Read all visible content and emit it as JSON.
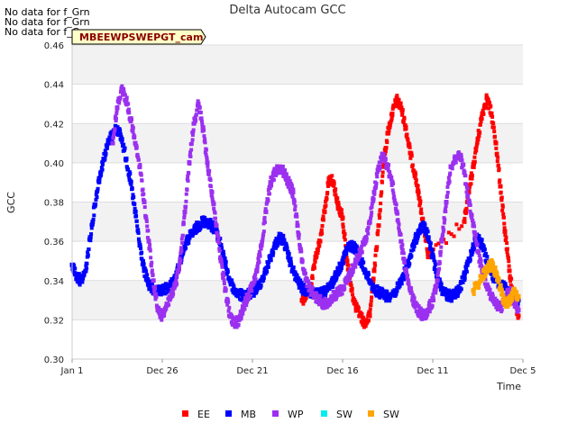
{
  "no_data_messages": [
    "No data for f_Grn",
    "No data for f_Grn",
    "No data for f_Grn"
  ],
  "site_label": "MBEEWPSWEPGT_cam",
  "chart_data": {
    "type": "scatter",
    "title": "Delta Autocam GCC",
    "xlabel": "Time",
    "ylabel": "GCC",
    "x_tick_labels": [
      "Jan 1",
      "Dec 26",
      "Dec 21",
      "Dec 16",
      "Dec 11",
      "Dec 5"
    ],
    "xlim": [
      0,
      5
    ],
    "ylim": [
      0.3,
      0.46
    ],
    "y_ticks": [
      0.3,
      0.32,
      0.34,
      0.36,
      0.38,
      0.4,
      0.42,
      0.44,
      0.46
    ],
    "y_tick_labels": [
      "0.30",
      "0.32",
      "0.34",
      "0.36",
      "0.38",
      "0.40",
      "0.42",
      "0.44",
      "0.46"
    ],
    "grid": true,
    "legend_position": "bottom",
    "series": [
      {
        "name": "EE",
        "color": "#ff0000",
        "x": [
          2.55,
          2.6,
          2.65,
          2.7,
          2.75,
          2.8,
          2.85,
          2.9,
          2.95,
          3.0,
          3.05,
          3.1,
          3.15,
          3.2,
          3.25,
          3.3,
          3.35,
          3.4,
          3.45,
          3.5,
          3.55,
          3.6,
          3.65,
          3.7,
          3.75,
          3.8,
          3.85,
          3.9,
          3.95,
          4.35,
          4.4,
          4.45,
          4.5,
          4.55,
          4.6,
          4.65,
          4.7,
          4.75,
          4.8,
          4.85,
          4.9,
          4.95
        ],
        "y": [
          0.33,
          0.333,
          0.338,
          0.352,
          0.36,
          0.375,
          0.392,
          0.39,
          0.378,
          0.372,
          0.35,
          0.335,
          0.326,
          0.322,
          0.318,
          0.322,
          0.345,
          0.368,
          0.398,
          0.415,
          0.425,
          0.432,
          0.428,
          0.418,
          0.405,
          0.395,
          0.382,
          0.368,
          0.352,
          0.37,
          0.385,
          0.398,
          0.412,
          0.425,
          0.433,
          0.425,
          0.41,
          0.388,
          0.365,
          0.345,
          0.33,
          0.322
        ]
      },
      {
        "name": "MB",
        "color": "#0000ff",
        "x": [
          0.0,
          0.05,
          0.1,
          0.15,
          0.2,
          0.25,
          0.3,
          0.35,
          0.4,
          0.45,
          0.5,
          0.55,
          0.6,
          0.65,
          0.7,
          0.75,
          0.8,
          0.85,
          0.9,
          0.95,
          1.0,
          1.05,
          1.1,
          1.15,
          1.2,
          1.25,
          1.3,
          1.35,
          1.4,
          1.45,
          1.5,
          1.55,
          1.6,
          1.65,
          1.7,
          1.75,
          1.8,
          1.85,
          1.9,
          1.95,
          2.0,
          2.05,
          2.1,
          2.15,
          2.2,
          2.25,
          2.3,
          2.35,
          2.4,
          2.45,
          2.5,
          2.55,
          2.6,
          2.65,
          2.7,
          2.75,
          2.8,
          2.85,
          2.9,
          2.95,
          3.0,
          3.05,
          3.1,
          3.15,
          3.2,
          3.25,
          3.3,
          3.35,
          3.4,
          3.45,
          3.5,
          3.55,
          3.6,
          3.65,
          3.7,
          3.75,
          3.8,
          3.85,
          3.9,
          3.95,
          4.0,
          4.05,
          4.1,
          4.15,
          4.2,
          4.25,
          4.3,
          4.35,
          4.4,
          4.45,
          4.5,
          4.55,
          4.6,
          4.65,
          4.7,
          4.75,
          4.8,
          4.85,
          4.9,
          4.95
        ],
        "y": [
          0.348,
          0.342,
          0.34,
          0.345,
          0.362,
          0.378,
          0.392,
          0.402,
          0.41,
          0.415,
          0.418,
          0.412,
          0.402,
          0.39,
          0.375,
          0.358,
          0.345,
          0.338,
          0.335,
          0.334,
          0.335,
          0.336,
          0.338,
          0.342,
          0.35,
          0.358,
          0.362,
          0.365,
          0.368,
          0.37,
          0.37,
          0.368,
          0.365,
          0.358,
          0.348,
          0.34,
          0.335,
          0.333,
          0.332,
          0.333,
          0.334,
          0.336,
          0.34,
          0.345,
          0.352,
          0.358,
          0.362,
          0.36,
          0.352,
          0.345,
          0.34,
          0.336,
          0.335,
          0.334,
          0.333,
          0.333,
          0.334,
          0.336,
          0.34,
          0.345,
          0.35,
          0.356,
          0.358,
          0.356,
          0.35,
          0.345,
          0.34,
          0.336,
          0.334,
          0.333,
          0.332,
          0.333,
          0.335,
          0.34,
          0.345,
          0.352,
          0.36,
          0.365,
          0.368,
          0.362,
          0.352,
          0.342,
          0.336,
          0.333,
          0.332,
          0.333,
          0.336,
          0.342,
          0.35,
          0.358,
          0.362,
          0.358,
          0.35,
          0.344,
          0.34,
          0.338,
          0.336,
          0.334,
          0.332,
          0.33
        ]
      },
      {
        "name": "WP",
        "color": "#9b30f0",
        "x": [
          0.45,
          0.5,
          0.55,
          0.6,
          0.65,
          0.7,
          0.75,
          0.8,
          0.85,
          0.9,
          0.95,
          1.0,
          1.05,
          1.1,
          1.15,
          1.2,
          1.25,
          1.3,
          1.35,
          1.4,
          1.45,
          1.5,
          1.55,
          1.6,
          1.65,
          1.7,
          1.75,
          1.8,
          1.85,
          1.9,
          1.95,
          2.0,
          2.05,
          2.1,
          2.15,
          2.2,
          2.25,
          2.3,
          2.35,
          2.4,
          2.45,
          2.5,
          2.55,
          2.6,
          2.65,
          2.7,
          2.75,
          2.8,
          2.85,
          2.9,
          2.95,
          3.0,
          3.05,
          3.1,
          3.15,
          3.2,
          3.25,
          3.3,
          3.35,
          3.4,
          3.45,
          3.5,
          3.55,
          3.6,
          3.65,
          3.7,
          3.75,
          3.8,
          3.85,
          3.9,
          3.95,
          4.0,
          4.05,
          4.1,
          4.15,
          4.2,
          4.25,
          4.3,
          4.35,
          4.4,
          4.45,
          4.5,
          4.55,
          4.6,
          4.65,
          4.7,
          4.75,
          4.8,
          4.85,
          4.9,
          4.95
        ],
        "y": [
          0.41,
          0.428,
          0.438,
          0.432,
          0.422,
          0.41,
          0.398,
          0.38,
          0.36,
          0.34,
          0.325,
          0.322,
          0.328,
          0.332,
          0.338,
          0.35,
          0.375,
          0.4,
          0.42,
          0.43,
          0.418,
          0.4,
          0.385,
          0.368,
          0.35,
          0.335,
          0.322,
          0.318,
          0.32,
          0.326,
          0.332,
          0.338,
          0.345,
          0.358,
          0.375,
          0.39,
          0.395,
          0.398,
          0.395,
          0.39,
          0.385,
          0.368,
          0.35,
          0.34,
          0.335,
          0.332,
          0.33,
          0.328,
          0.33,
          0.332,
          0.334,
          0.336,
          0.34,
          0.345,
          0.35,
          0.355,
          0.36,
          0.37,
          0.385,
          0.398,
          0.404,
          0.398,
          0.39,
          0.375,
          0.36,
          0.345,
          0.335,
          0.328,
          0.324,
          0.322,
          0.325,
          0.33,
          0.34,
          0.36,
          0.38,
          0.398,
          0.402,
          0.404,
          0.395,
          0.38,
          0.368,
          0.355,
          0.345,
          0.338,
          0.332,
          0.328,
          0.326,
          0.33,
          0.335,
          0.33,
          0.325
        ]
      },
      {
        "name": "SW",
        "color": "#00eeee",
        "x": [],
        "y": []
      },
      {
        "name": "SW",
        "color": "#ffa500",
        "x": [
          4.45,
          4.5,
          4.55,
          4.6,
          4.65,
          4.7,
          4.75,
          4.8,
          4.85,
          4.9,
          4.95
        ],
        "y": [
          0.335,
          0.338,
          0.342,
          0.346,
          0.348,
          0.344,
          0.336,
          0.328,
          0.33,
          0.334,
          0.332
        ]
      }
    ]
  }
}
